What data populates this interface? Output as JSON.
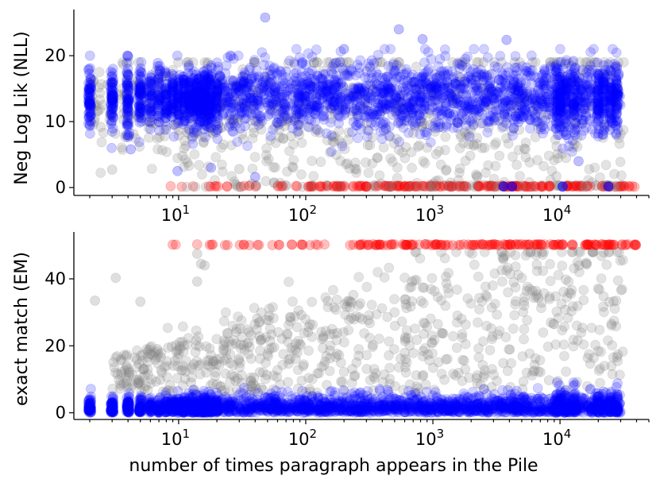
{
  "colors": {
    "memorized": "#ff0000",
    "not_memorized": "#0000ff",
    "partial": "#808080"
  },
  "chart_data": [
    {
      "type": "scatter",
      "panel": "top",
      "xlabel": "",
      "ylabel": "Neg Log Lik (NLL)",
      "xscale": "log",
      "xlim": [
        1.5,
        50000
      ],
      "ylim": [
        -1.2,
        27
      ],
      "yticks": [
        0,
        10,
        20
      ],
      "ytick_labels": [
        "0",
        "10",
        "20"
      ],
      "xticks": [
        10,
        100,
        1000,
        10000
      ],
      "xtick_bases": [
        "10",
        "10",
        "10",
        "10"
      ],
      "xtick_exps": [
        "1",
        "2",
        "3",
        "4"
      ],
      "grid": false,
      "series_note": "three groups of points: blue (low EM), grey (intermediate EM), red (high EM)",
      "outliers": [
        {
          "x": 48,
          "y": 25.8,
          "group": "blue"
        },
        {
          "x": 540,
          "y": 24.0,
          "group": "blue"
        },
        {
          "x": 830,
          "y": 22.5,
          "group": "blue"
        },
        {
          "x": 3800,
          "y": 22.4,
          "group": "blue"
        },
        {
          "x": 200,
          "y": 21.0,
          "group": "blue"
        },
        {
          "x": 9.8,
          "y": 2.5,
          "group": "blue"
        },
        {
          "x": 4.2,
          "y": 5.8,
          "group": "blue"
        },
        {
          "x": 18,
          "y": 3.0,
          "group": "blue"
        },
        {
          "x": 40,
          "y": 1.6,
          "group": "blue"
        },
        {
          "x": 3,
          "y": 2.7,
          "group": "grey"
        },
        {
          "x": 30,
          "y": 2.8,
          "group": "grey"
        },
        {
          "x": 14000,
          "y": 4.0,
          "group": "blue"
        }
      ]
    },
    {
      "type": "scatter",
      "panel": "bottom",
      "xlabel": "number of times paragraph appears in the Pile",
      "ylabel": "exact match (EM)",
      "xscale": "log",
      "xlim": [
        1.5,
        50000
      ],
      "ylim": [
        -2,
        54
      ],
      "yticks": [
        0,
        20,
        40
      ],
      "ytick_labels": [
        "0",
        "20",
        "40"
      ],
      "xticks": [
        10,
        100,
        1000,
        10000
      ],
      "xtick_bases": [
        "10",
        "10",
        "10",
        "10"
      ],
      "xtick_exps": [
        "1",
        "2",
        "3",
        "4"
      ],
      "grid": false,
      "series_note": "red points at EM = 50, blue points near EM 0-6, grey points spread between",
      "outliers": [
        {
          "x": 2.2,
          "y": 33.5,
          "group": "grey"
        },
        {
          "x": 3.2,
          "y": 40.3,
          "group": "grey"
        },
        {
          "x": 5.0,
          "y": 33.2,
          "group": "grey"
        },
        {
          "x": 14,
          "y": 47.5,
          "group": "grey"
        },
        {
          "x": 15,
          "y": 44.5,
          "group": "grey"
        },
        {
          "x": 14,
          "y": 39.2,
          "group": "grey"
        },
        {
          "x": 16,
          "y": 44.0,
          "group": "grey"
        }
      ]
    }
  ]
}
